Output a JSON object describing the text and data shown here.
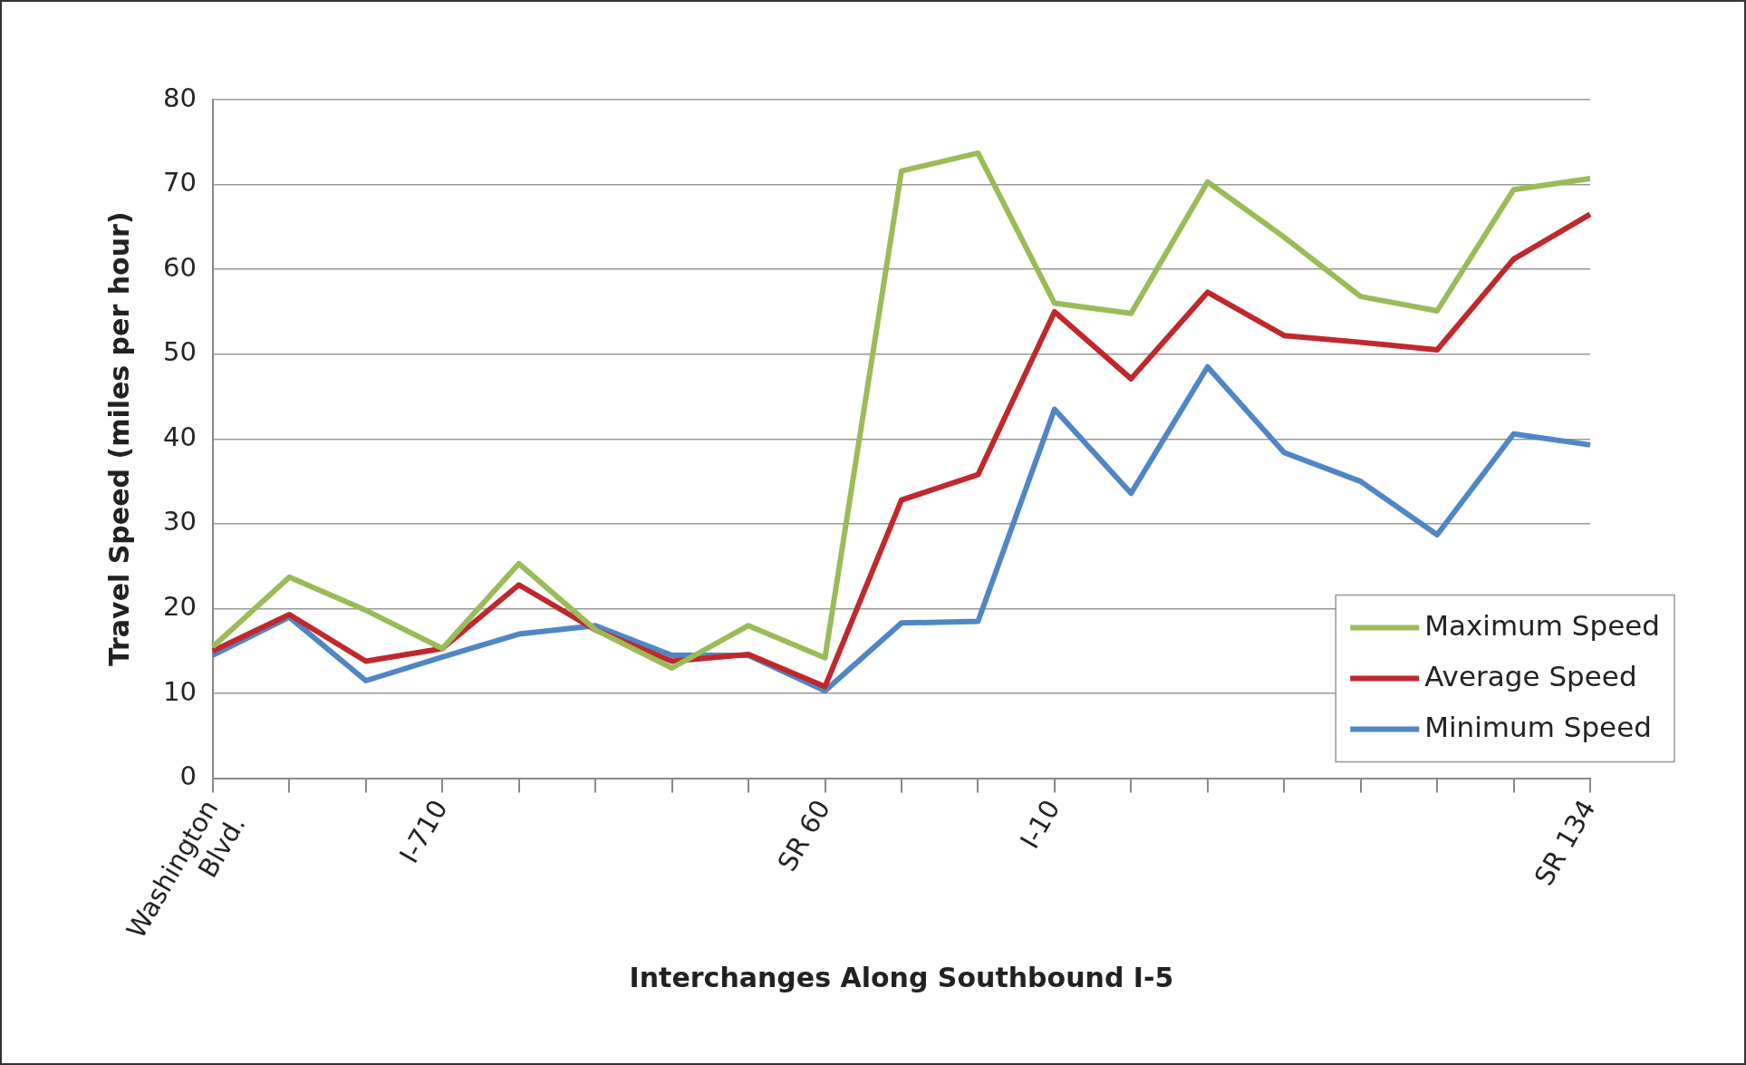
{
  "chart_data": {
    "type": "line",
    "xlabel": "Interchanges Along Southbound I-5",
    "ylabel": "Travel Speed (miles per hour)",
    "categories": [
      "Washington Blvd.",
      null,
      null,
      "I-710",
      null,
      null,
      null,
      null,
      "SR 60",
      null,
      null,
      "I-10",
      null,
      null,
      null,
      null,
      null,
      null,
      "SR 134"
    ],
    "series": [
      {
        "name": "Maximum Speed",
        "color": "#9bbb59",
        "values": [
          15.5,
          23.7,
          19.8,
          15.3,
          25.3,
          17.5,
          13,
          18,
          14.2,
          71.6,
          73.7,
          56,
          54.8,
          70.3,
          63.8,
          56.8,
          55.1,
          69.4,
          70.7
        ]
      },
      {
        "name": "Average Speed",
        "color": "#c0282d",
        "values": [
          15,
          19.3,
          13.8,
          15.3,
          22.8,
          17.5,
          13.8,
          14.6,
          10.8,
          32.8,
          35.8,
          55,
          47.1,
          57.3,
          52.2,
          51.4,
          50.5,
          61.2,
          66.5
        ]
      },
      {
        "name": "Minimum Speed",
        "color": "#4f86c6",
        "values": [
          14.5,
          19,
          11.5,
          14.3,
          17,
          18,
          14.5,
          14.5,
          10.3,
          18.3,
          18.5,
          43.5,
          33.6,
          48.5,
          38.4,
          35,
          28.7,
          40.6,
          39.3
        ]
      }
    ],
    "ylim": [
      0,
      80
    ],
    "yticks": [
      0,
      10,
      20,
      30,
      40,
      50,
      60,
      70,
      80
    ],
    "grid": "y",
    "legend": "bottom right",
    "marker": "none",
    "line_style": "solid"
  }
}
